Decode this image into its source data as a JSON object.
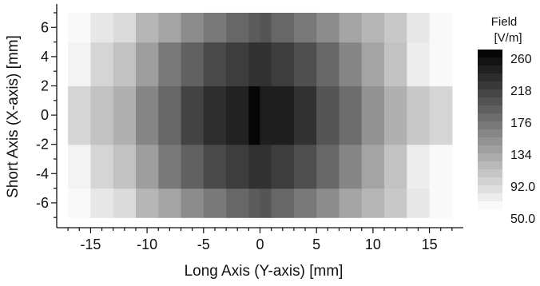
{
  "chart_data": {
    "type": "heatmap",
    "title": "",
    "xlabel": "Long Axis (Y-axis) [mm]",
    "ylabel": "Short Axis (X-axis) [mm]",
    "xlim": [
      -18,
      18
    ],
    "ylim": [
      -7.7,
      7.6
    ],
    "x_ticks": [
      -15,
      -10,
      -5,
      0,
      5,
      10,
      15
    ],
    "y_ticks": [
      -6,
      -4,
      -2,
      0,
      2,
      4,
      6
    ],
    "grid": false,
    "x_edges": [
      -17,
      -15,
      -13,
      -11,
      -9,
      -7,
      -5,
      -3,
      -1,
      0,
      1,
      3,
      5,
      7,
      9,
      11,
      13,
      15,
      17
    ],
    "y_edges": [
      -7,
      -5,
      -2,
      2,
      5,
      7
    ],
    "values": [
      [
        55,
        70,
        80,
        110,
        125,
        145,
        160,
        175,
        185,
        190,
        175,
        160,
        145,
        125,
        110,
        95,
        70,
        55
      ],
      [
        60,
        85,
        100,
        130,
        160,
        180,
        200,
        210,
        220,
        220,
        210,
        195,
        175,
        150,
        125,
        100,
        65,
        55
      ],
      [
        85,
        100,
        115,
        150,
        175,
        205,
        222,
        232,
        255,
        235,
        235,
        220,
        190,
        170,
        140,
        115,
        95,
        85
      ],
      [
        60,
        85,
        100,
        130,
        160,
        180,
        200,
        210,
        220,
        220,
        210,
        195,
        175,
        150,
        125,
        100,
        65,
        55
      ],
      [
        55,
        70,
        80,
        110,
        125,
        145,
        160,
        175,
        185,
        190,
        175,
        160,
        145,
        125,
        110,
        95,
        70,
        55
      ]
    ],
    "colorbar": {
      "title": "Field",
      "unit": "[V/m]",
      "range": [
        50,
        260
      ],
      "tick_labels": [
        "260",
        "218",
        "176",
        "134",
        "92.0",
        "50.0"
      ],
      "tick_values": [
        260,
        218,
        176,
        134,
        92,
        50
      ],
      "colormap": "white-to-black grayscale"
    },
    "colors": {
      "low": "#ffffff",
      "high": "#000000",
      "axis": "#111111"
    }
  }
}
